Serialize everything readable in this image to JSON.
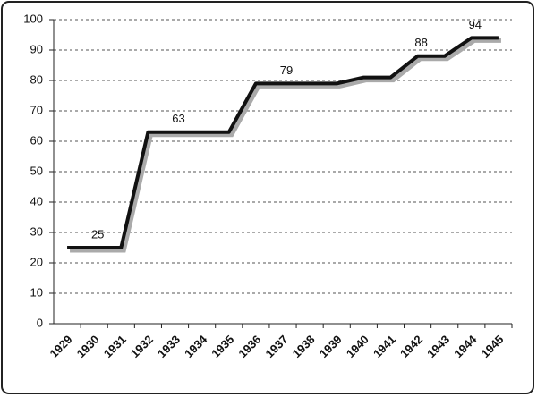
{
  "chart_data": {
    "type": "line",
    "categories": [
      "1929",
      "1930",
      "1931",
      "1932",
      "1933",
      "1934",
      "1935",
      "1936",
      "1937",
      "1938",
      "1939",
      "1940",
      "1941",
      "1942",
      "1943",
      "1944",
      "1945"
    ],
    "values": [
      25,
      25,
      25,
      63,
      63,
      63,
      63,
      79,
      79,
      79,
      79,
      81,
      81,
      88,
      88,
      94,
      94
    ],
    "color": "#111111",
    "data_label_indices": [
      1,
      4,
      8,
      13,
      15
    ],
    "ylim": [
      0,
      100
    ],
    "yticks": [
      0,
      10,
      20,
      30,
      40,
      50,
      60,
      70,
      80,
      90,
      100
    ],
    "grid": true
  }
}
